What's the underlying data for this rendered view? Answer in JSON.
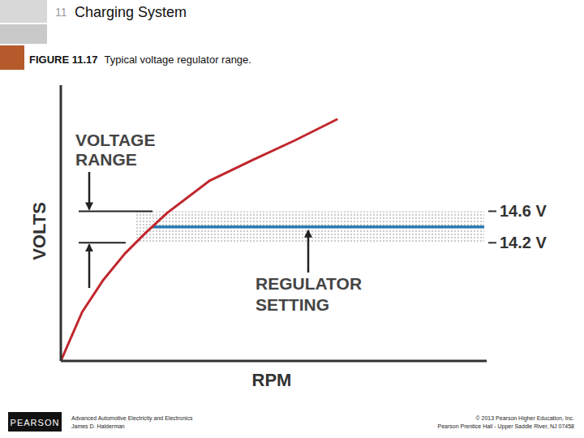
{
  "slide": {
    "chapter": "11",
    "chapter_title": "Charging System",
    "figure_number": "FIGURE 11.17",
    "caption": "Typical voltage regulator range.",
    "publisher": "PEARSON",
    "book": "Advanced Automotive Electricity and Electronics",
    "author": "James D. Halderman",
    "copyright": "© 2013 Pearson Higher Education, Inc.",
    "address": "Pearson Prentice Hall - Upper Saddle River, NJ 07458"
  },
  "chart_data": {
    "type": "line",
    "x_label": "RPM",
    "y_label": "VOLTS",
    "x": [
      0,
      5,
      10,
      15,
      20,
      25,
      35,
      45,
      55,
      65
    ],
    "series": [
      {
        "color": "#c0272d",
        "values": [
          12.7,
          13.32,
          13.73,
          14.06,
          14.33,
          14.58,
          14.99,
          15.25,
          15.5,
          15.77
        ]
      }
    ],
    "xlim": [
      0,
      100
    ],
    "ylim": [
      12.7,
      16.2
    ],
    "yticks": [
      {
        "value": 14.6,
        "label": "14.6 V"
      },
      {
        "value": 14.2,
        "label": "14.2 V"
      }
    ],
    "tick_labels": "y",
    "range": {
      "label": "VOLTAGE RANGE",
      "values": [
        14.2,
        14.6
      ]
    },
    "reference_line": {
      "label": "REGULATOR SETTING",
      "value": 14.4,
      "color": "#2b7bb4"
    }
  }
}
